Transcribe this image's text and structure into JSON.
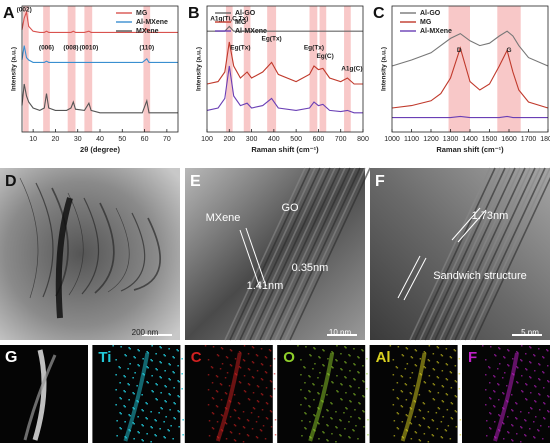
{
  "chart_data": [
    {
      "type": "line",
      "label": "A",
      "xlabel": "2θ (degree)",
      "ylabel": "Intensity (a.u.)",
      "legend": "upper right",
      "x": [
        5,
        6,
        7,
        8,
        10,
        13,
        15,
        16,
        17,
        20,
        25,
        27,
        28,
        29,
        33,
        35,
        36,
        40,
        50,
        59,
        61,
        62,
        65,
        75
      ],
      "xlim": [
        5,
        75
      ],
      "xticks": [
        10,
        20,
        30,
        40,
        50,
        60,
        70
      ],
      "ylim": [
        0,
        105
      ],
      "highlights": [
        [
          5.5,
          8
        ],
        [
          14.5,
          17.5
        ],
        [
          25.5,
          29
        ],
        [
          33,
          36.5
        ],
        [
          59.5,
          62.5
        ]
      ],
      "highlight_color": "#f5b5b5",
      "annotations": [
        "(002)",
        "(006)",
        "(008)",
        "(0010)",
        "(110)"
      ],
      "series": [
        {
          "name": "MG",
          "color": "#d9534f",
          "values": [
            85,
            95,
            100,
            88,
            84,
            83,
            83,
            84,
            83,
            83,
            83,
            83,
            84,
            83,
            83,
            84,
            83,
            83,
            83,
            83,
            86,
            83,
            83,
            83
          ]
        },
        {
          "name": "Al-MXene",
          "color": "#3a8fd0",
          "values": [
            60,
            72,
            62,
            60,
            58,
            58,
            58,
            59,
            58,
            58,
            58,
            58,
            58,
            58,
            58,
            58,
            58,
            58,
            58,
            58,
            61,
            58,
            58,
            58
          ]
        },
        {
          "name": "MXene",
          "color": "#555555",
          "values": [
            22,
            40,
            30,
            25,
            20,
            18,
            20,
            32,
            20,
            18,
            18,
            20,
            25,
            19,
            18,
            24,
            18,
            16,
            16,
            16,
            26,
            16,
            16,
            16
          ]
        }
      ]
    },
    {
      "type": "line",
      "label": "B",
      "xlabel": "Raman shift (cm⁻¹)",
      "ylabel": "Intensity (a.u.)",
      "legend": "upper left",
      "x": [
        100,
        150,
        180,
        200,
        220,
        250,
        280,
        300,
        350,
        390,
        420,
        500,
        560,
        580,
        600,
        620,
        650,
        700,
        730,
        760,
        800
      ],
      "xlim": [
        100,
        800
      ],
      "xticks": [
        100,
        200,
        300,
        400,
        500,
        600,
        700,
        800
      ],
      "ylim": [
        0,
        105
      ],
      "highlights": [
        [
          185,
          215
        ],
        [
          265,
          295
        ],
        [
          370,
          410
        ],
        [
          560,
          595
        ],
        [
          605,
          635
        ],
        [
          715,
          745
        ]
      ],
      "highlight_color": "#f5b5b5",
      "annotations": [
        "A1g(Ti,C,Tx)",
        "Eg(Tx)",
        "Eg(Tx)",
        "Eg(Tx)",
        "Eg(C)",
        "A1g(C)"
      ],
      "series": [
        {
          "name": "Al-GO",
          "color": "#666666",
          "values": [
            84,
            84,
            84,
            88,
            84,
            84,
            84,
            84,
            84,
            84,
            84,
            84,
            84,
            84,
            84,
            84,
            84,
            84,
            84,
            84,
            84
          ]
        },
        {
          "name": "MG",
          "color": "#c0392b",
          "values": [
            40,
            42,
            50,
            75,
            55,
            45,
            50,
            45,
            50,
            58,
            48,
            42,
            48,
            55,
            52,
            53,
            45,
            42,
            45,
            40,
            40
          ]
        },
        {
          "name": "Al-MXene",
          "color": "#6a3fb5",
          "values": [
            18,
            20,
            28,
            55,
            30,
            22,
            24,
            20,
            22,
            28,
            20,
            18,
            20,
            25,
            22,
            23,
            18,
            17,
            18,
            16,
            16
          ]
        }
      ]
    },
    {
      "type": "line",
      "label": "C",
      "xlabel": "Raman shift (cm⁻¹)",
      "ylabel": "Intensity (a.u.)",
      "legend": "upper left",
      "x": [
        1000,
        1100,
        1200,
        1250,
        1300,
        1350,
        1400,
        1450,
        1500,
        1550,
        1590,
        1620,
        1650,
        1700,
        1800
      ],
      "xlim": [
        1000,
        1800
      ],
      "xticks": [
        1000,
        1100,
        1200,
        1300,
        1400,
        1500,
        1600,
        1700,
        1800
      ],
      "ylim": [
        0,
        105
      ],
      "highlights": [
        [
          1290,
          1400
        ],
        [
          1540,
          1660
        ]
      ],
      "highlight_color": "#f5b5b5",
      "annotations": [
        "D",
        "G"
      ],
      "series": [
        {
          "name": "Al-GO",
          "color": "#777777",
          "values": [
            55,
            60,
            66,
            72,
            78,
            82,
            76,
            72,
            74,
            80,
            84,
            80,
            72,
            62,
            55
          ]
        },
        {
          "name": "MG",
          "color": "#c0392b",
          "values": [
            20,
            22,
            26,
            32,
            45,
            70,
            42,
            35,
            40,
            55,
            68,
            50,
            35,
            25,
            20
          ]
        },
        {
          "name": "Al-MXene",
          "color": "#6a3fb5",
          "values": [
            12,
            12,
            12,
            12,
            12,
            13,
            12,
            12,
            12,
            12,
            13,
            12,
            12,
            12,
            12
          ]
        }
      ]
    }
  ],
  "images": [
    {
      "label": "D",
      "texts": [
        "200 nm"
      ]
    },
    {
      "label": "E",
      "texts": [
        "MXene",
        "GO",
        "1.41nm",
        "0.35nm",
        "10 nm"
      ]
    },
    {
      "label": "F",
      "texts": [
        "1.73nm",
        "Sandwich structure",
        "5 nm"
      ]
    }
  ],
  "maps": {
    "label": "G",
    "elements": [
      "Ti",
      "C",
      "O",
      "Al",
      "F"
    ]
  }
}
